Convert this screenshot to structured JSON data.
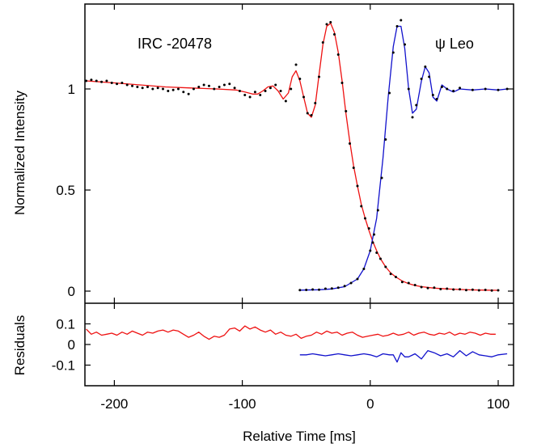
{
  "chart_data": [
    {
      "type": "line",
      "panel": "main",
      "title": "",
      "xlabel": "",
      "ylabel": "Normalized Intensity",
      "xlim": [
        -223,
        112
      ],
      "ylim": [
        -0.06,
        1.42
      ],
      "yticks": [
        0,
        0.5,
        1
      ],
      "ytick_labels": [
        "0",
        "0.5",
        "1"
      ],
      "grid": false,
      "legend": "none",
      "annotations": [
        "IRC -20478",
        "ψ Leo"
      ],
      "series": [
        {
          "color": "#ee1111",
          "x": [
            -222,
            -200,
            -180,
            -160,
            -140,
            -120,
            -105,
            -98,
            -92,
            -88,
            -84,
            -80,
            -76,
            -72,
            -68,
            -64,
            -61,
            -58,
            -55,
            -52,
            -49,
            -46,
            -43,
            -40,
            -37,
            -34,
            -31,
            -28,
            -25,
            -22,
            -19,
            -16,
            -13,
            -10,
            -7,
            -4,
            -1,
            2,
            5,
            8,
            12,
            16,
            20,
            25,
            30,
            35,
            40,
            50,
            60,
            70,
            80,
            90,
            100
          ],
          "y": [
            1.04,
            1.03,
            1.02,
            1.01,
            1.005,
            1.0,
            0.995,
            0.985,
            0.975,
            0.975,
            0.99,
            1.01,
            1.015,
            0.99,
            0.95,
            0.98,
            1.06,
            1.09,
            1.04,
            0.96,
            0.88,
            0.86,
            0.92,
            1.07,
            1.22,
            1.31,
            1.325,
            1.28,
            1.18,
            1.04,
            0.88,
            0.74,
            0.62,
            0.52,
            0.43,
            0.36,
            0.3,
            0.245,
            0.2,
            0.16,
            0.12,
            0.09,
            0.07,
            0.05,
            0.037,
            0.028,
            0.022,
            0.015,
            0.011,
            0.008,
            0.006,
            0.005,
            0.004
          ]
        },
        {
          "color": "#1111cc",
          "x": [
            -55,
            -40,
            -30,
            -20,
            -10,
            -5,
            0,
            5,
            10,
            14,
            18,
            21,
            24,
            27,
            30,
            33,
            36,
            40,
            43,
            46,
            49,
            52,
            56,
            60,
            65,
            70,
            80,
            90,
            100,
            107
          ],
          "y": [
            0.005,
            0.007,
            0.011,
            0.022,
            0.06,
            0.11,
            0.2,
            0.36,
            0.66,
            0.96,
            1.21,
            1.31,
            1.31,
            1.2,
            1.0,
            0.88,
            0.9,
            1.04,
            1.11,
            1.08,
            0.96,
            0.94,
            1.02,
            1.0,
            0.985,
            1.0,
            0.995,
            1.0,
            0.995,
            1.0
          ]
        },
        {
          "color": "#000000",
          "marker": "dot",
          "x": [
            -222,
            -218,
            -214,
            -210,
            -206,
            -202,
            -198,
            -194,
            -190,
            -186,
            -182,
            -178,
            -174,
            -170,
            -166,
            -162,
            -158,
            -154,
            -150,
            -146,
            -142,
            -138,
            -134,
            -130,
            -126,
            -122,
            -118,
            -114,
            -110,
            -106,
            -102,
            -98,
            -94,
            -90,
            -86,
            -82,
            -78,
            -74,
            -70,
            -66,
            -62,
            -58,
            -55,
            -52,
            -49,
            -46,
            -43,
            -40,
            -37,
            -34,
            -31,
            -28,
            -25,
            -22,
            -19,
            -16,
            -13,
            -10,
            -7,
            -4,
            -1,
            2,
            5,
            8,
            12,
            16,
            20,
            25,
            30,
            35,
            40,
            45,
            50,
            55,
            60,
            65,
            70,
            75,
            80,
            85,
            90,
            95,
            100
          ],
          "y": [
            1.04,
            1.045,
            1.04,
            1.035,
            1.04,
            1.03,
            1.025,
            1.03,
            1.02,
            1.015,
            1.01,
            1.005,
            1.01,
            1.0,
            1.005,
            1.0,
            0.99,
            0.995,
            1.0,
            0.985,
            0.975,
            1.0,
            1.01,
            1.02,
            1.015,
            1.0,
            1.01,
            1.02,
            1.025,
            1.005,
            0.99,
            0.97,
            0.96,
            0.985,
            0.97,
            0.99,
            1.005,
            1.02,
            0.99,
            0.94,
            1.0,
            1.12,
            1.05,
            0.96,
            0.88,
            0.87,
            0.93,
            1.06,
            1.23,
            1.32,
            1.33,
            1.27,
            1.17,
            1.03,
            0.89,
            0.73,
            0.61,
            0.52,
            0.42,
            0.36,
            0.31,
            0.24,
            0.19,
            0.16,
            0.12,
            0.085,
            0.07,
            0.045,
            0.04,
            0.03,
            0.02,
            0.015,
            0.017,
            0.01,
            0.012,
            0.008,
            0.009,
            0.005,
            0.007,
            0.004,
            0.006,
            0.003,
            0.004
          ]
        },
        {
          "color": "#000000",
          "marker": "dot",
          "x": [
            -55,
            -50,
            -45,
            -40,
            -35,
            -30,
            -25,
            -20,
            -15,
            -10,
            -5,
            0,
            3,
            6,
            9,
            12,
            15,
            18,
            21,
            24,
            27,
            30,
            33,
            36,
            40,
            43,
            46,
            49,
            52,
            56,
            60,
            65,
            70,
            80,
            90,
            100,
            107
          ],
          "y": [
            0.005,
            0.006,
            0.008,
            0.007,
            0.012,
            0.013,
            0.017,
            0.025,
            0.04,
            0.06,
            0.11,
            0.2,
            0.28,
            0.4,
            0.56,
            0.75,
            0.98,
            1.18,
            1.31,
            1.34,
            1.22,
            1.0,
            0.86,
            0.92,
            1.05,
            1.11,
            1.06,
            0.97,
            0.95,
            1.01,
            1.0,
            0.99,
            1.005,
            0.995,
            1.0,
            0.995,
            1.0
          ]
        }
      ]
    },
    {
      "type": "line",
      "panel": "residuals",
      "title": "",
      "xlabel": "Relative Time [ms]",
      "ylabel": "Residuals",
      "xlim": [
        -223,
        112
      ],
      "ylim": [
        -0.2,
        0.2
      ],
      "xticks": [
        -200,
        -100,
        0,
        100
      ],
      "xtick_labels": [
        "-200",
        "-100",
        "0",
        "100"
      ],
      "yticks": [
        0.1,
        0,
        -0.1
      ],
      "ytick_labels": [
        "0.1",
        "0",
        "-0.1"
      ],
      "grid": false,
      "legend": "none",
      "series": [
        {
          "color": "#ee1111",
          "x": [
            -222,
            -218,
            -214,
            -210,
            -206,
            -202,
            -198,
            -194,
            -190,
            -186,
            -182,
            -178,
            -174,
            -170,
            -166,
            -162,
            -158,
            -154,
            -150,
            -146,
            -142,
            -138,
            -134,
            -130,
            -126,
            -122,
            -118,
            -114,
            -110,
            -106,
            -102,
            -98,
            -94,
            -90,
            -86,
            -82,
            -78,
            -74,
            -70,
            -66,
            -62,
            -58,
            -54,
            -50,
            -46,
            -42,
            -38,
            -34,
            -30,
            -26,
            -22,
            -18,
            -14,
            -10,
            -6,
            -2,
            2,
            6,
            10,
            14,
            18,
            22,
            26,
            30,
            34,
            38,
            42,
            46,
            50,
            54,
            58,
            62,
            66,
            70,
            74,
            78,
            82,
            86,
            90,
            94,
            98
          ],
          "y": [
            0.075,
            0.05,
            0.06,
            0.045,
            0.05,
            0.055,
            0.045,
            0.06,
            0.05,
            0.065,
            0.055,
            0.045,
            0.06,
            0.055,
            0.065,
            0.07,
            0.06,
            0.07,
            0.065,
            0.05,
            0.035,
            0.045,
            0.06,
            0.04,
            0.025,
            0.04,
            0.035,
            0.045,
            0.075,
            0.08,
            0.065,
            0.09,
            0.075,
            0.085,
            0.07,
            0.06,
            0.07,
            0.05,
            0.06,
            0.045,
            0.04,
            0.05,
            0.03,
            0.04,
            0.045,
            0.06,
            0.05,
            0.065,
            0.055,
            0.06,
            0.045,
            0.055,
            0.06,
            0.045,
            0.035,
            0.04,
            0.045,
            0.05,
            0.04,
            0.045,
            0.055,
            0.045,
            0.05,
            0.06,
            0.045,
            0.055,
            0.06,
            0.05,
            0.045,
            0.055,
            0.05,
            0.06,
            0.045,
            0.055,
            0.05,
            0.06,
            0.055,
            0.045,
            0.055,
            0.05,
            0.05
          ]
        },
        {
          "color": "#1111cc",
          "x": [
            -55,
            -50,
            -45,
            -40,
            -35,
            -30,
            -25,
            -20,
            -15,
            -10,
            -5,
            0,
            5,
            10,
            15,
            18,
            21,
            24,
            27,
            30,
            35,
            40,
            45,
            50,
            55,
            60,
            65,
            70,
            75,
            80,
            85,
            90,
            95,
            100,
            107
          ],
          "y": [
            -0.05,
            -0.05,
            -0.045,
            -0.05,
            -0.055,
            -0.05,
            -0.045,
            -0.05,
            -0.055,
            -0.05,
            -0.045,
            -0.05,
            -0.06,
            -0.045,
            -0.05,
            -0.05,
            -0.085,
            -0.04,
            -0.06,
            -0.06,
            -0.045,
            -0.07,
            -0.03,
            -0.04,
            -0.055,
            -0.045,
            -0.06,
            -0.03,
            -0.055,
            -0.035,
            -0.05,
            -0.055,
            -0.06,
            -0.05,
            -0.045
          ]
        }
      ]
    }
  ]
}
